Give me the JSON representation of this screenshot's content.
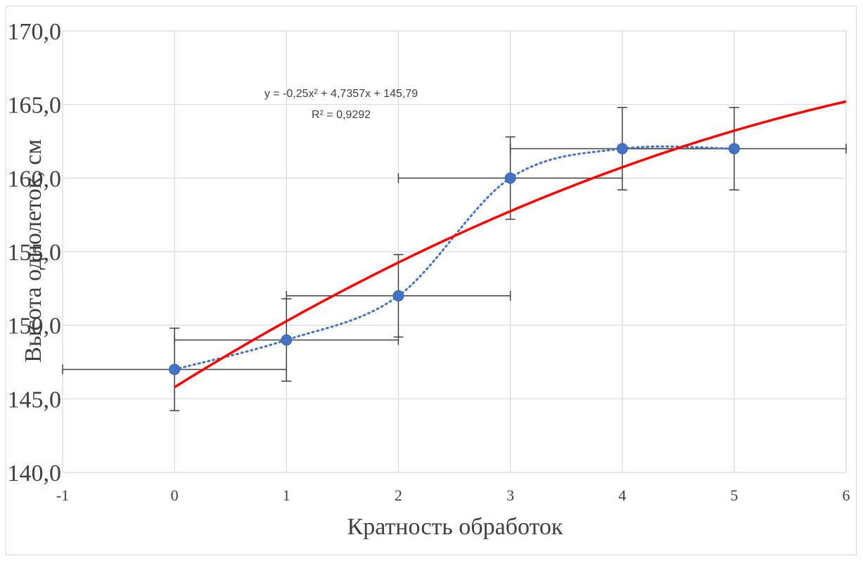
{
  "chart_data": {
    "type": "scatter",
    "xlabel": "Кратность обработок",
    "ylabel": "Высота однолеток, см",
    "xlim": [
      -1,
      6
    ],
    "ylim": [
      140,
      170
    ],
    "x_ticks": [
      "-1",
      "0",
      "1",
      "2",
      "3",
      "4",
      "5",
      "6"
    ],
    "y_ticks": [
      "140,0",
      "145,0",
      "150,0",
      "155,0",
      "160,0",
      "165,0",
      "170,0"
    ],
    "grid": true,
    "series": [
      {
        "x": [
          0,
          1,
          2,
          3,
          4,
          5
        ],
        "y": [
          147,
          149,
          152,
          160,
          162,
          162
        ],
        "color": "#4472c4",
        "connector": "smooth-dotted",
        "y_error": 2.8,
        "x_error": 1.0
      }
    ],
    "trendline": {
      "type": "polynomial-2",
      "coefficients": {
        "a": -0.25,
        "b": 4.7357,
        "c": 145.79
      },
      "color": "#ff0000",
      "label_line1": "y = -0,25x² + 4,7357x + 145,79",
      "label_line2": "R² = 0,9292"
    }
  }
}
